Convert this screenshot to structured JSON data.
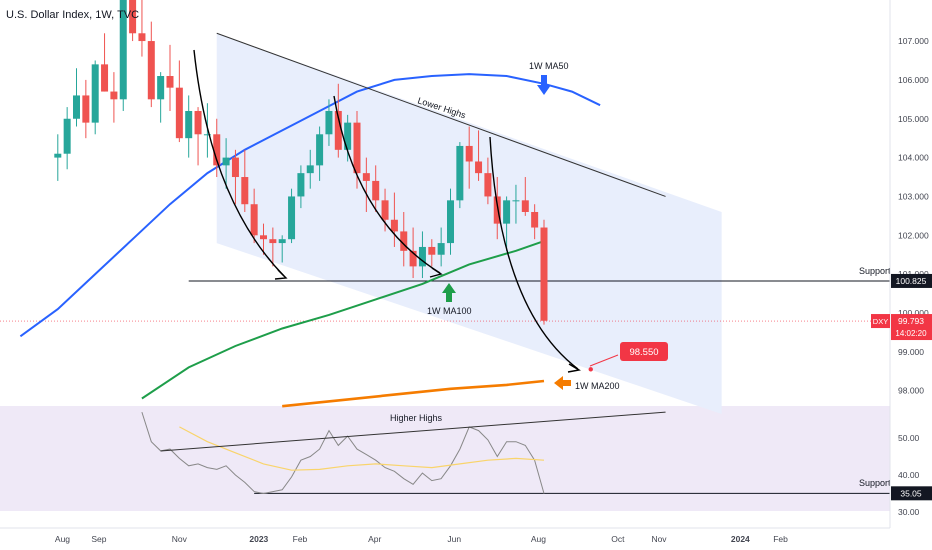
{
  "header": {
    "title": "U.S. Dollar Index, 1W, TVC"
  },
  "chart_data": {
    "type": "candlestick",
    "symbol": "DXY",
    "timeframe": "1W",
    "price_axis": {
      "ticks": [
        {
          "label": "107.000",
          "value": 107.0
        },
        {
          "label": "106.000",
          "value": 106.0
        },
        {
          "label": "105.000",
          "value": 105.0
        },
        {
          "label": "104.000",
          "value": 104.0
        },
        {
          "label": "103.000",
          "value": 103.0
        },
        {
          "label": "102.000",
          "value": 102.0
        },
        {
          "label": "101.000",
          "value": 101.0
        },
        {
          "label": "100.000",
          "value": 100.0
        },
        {
          "label": "99.000",
          "value": 99.0
        },
        {
          "label": "98.000",
          "value": 98.0
        }
      ],
      "range": [
        97.6,
        108.2
      ],
      "badges": [
        {
          "label": "100.825",
          "value": 100.825,
          "style": "dark"
        },
        {
          "label": "DXY",
          "value": 99.793,
          "style": "red"
        },
        {
          "label": "99.793",
          "value": 99.793,
          "style": "red"
        },
        {
          "label": "14:02:20",
          "value": 99.55,
          "style": "red"
        }
      ]
    },
    "rsi_axis": {
      "ticks": [
        {
          "label": "50.00",
          "value": 50
        },
        {
          "label": "40.00",
          "value": 40
        },
        {
          "label": "30.00",
          "value": 30
        }
      ],
      "range": [
        28,
        58
      ],
      "badge": {
        "label": "35.05",
        "value": 35.05
      }
    },
    "time_axis": {
      "labels": [
        {
          "label": "Aug",
          "week": -65.5
        },
        {
          "label": "Sep",
          "week": -61.6
        },
        {
          "label": "Nov",
          "week": -53.0
        },
        {
          "label": "2023",
          "week": -44.5
        },
        {
          "label": "Feb",
          "week": -40.1
        },
        {
          "label": "Apr",
          "week": -32.1
        },
        {
          "label": "Jun",
          "week": -23.6
        },
        {
          "label": "Aug",
          "week": -14.6
        },
        {
          "label": "Oct",
          "week": -6.1
        },
        {
          "label": "Nov",
          "week": -1.7
        },
        {
          "label": "2024",
          "week": 7.0
        },
        {
          "label": "Feb",
          "week": 11.3
        }
      ]
    },
    "candles": [
      [
        -66,
        104.0,
        104.6,
        103.4,
        104.1
      ],
      [
        -65,
        104.1,
        105.3,
        103.7,
        105.0
      ],
      [
        -64,
        105.0,
        106.3,
        104.8,
        105.6
      ],
      [
        -63,
        105.6,
        106.0,
        104.5,
        104.9
      ],
      [
        -62,
        104.9,
        106.5,
        104.6,
        106.4
      ],
      [
        -61,
        106.4,
        107.2,
        105.7,
        105.7
      ],
      [
        -60,
        105.7,
        106.2,
        104.9,
        105.5
      ],
      [
        -59,
        105.5,
        108.3,
        105.2,
        108.1
      ],
      [
        -58,
        108.1,
        108.8,
        107.0,
        107.2
      ],
      [
        -57,
        107.2,
        108.5,
        106.6,
        107.0
      ],
      [
        -56,
        107.0,
        107.5,
        105.3,
        105.5
      ],
      [
        -55,
        105.5,
        106.2,
        104.9,
        106.1
      ],
      [
        -54,
        106.1,
        106.9,
        105.2,
        105.8
      ],
      [
        -53,
        105.8,
        106.5,
        104.4,
        104.5
      ],
      [
        -52,
        104.5,
        105.6,
        104.0,
        105.2
      ],
      [
        -51,
        105.2,
        105.3,
        103.8,
        104.6
      ],
      [
        -50,
        104.6,
        105.4,
        104.0,
        104.6
      ],
      [
        -49,
        104.6,
        105.0,
        103.5,
        103.8
      ],
      [
        -48,
        103.8,
        104.5,
        103.2,
        104.0
      ],
      [
        -47,
        104.0,
        104.2,
        102.8,
        103.5
      ],
      [
        -46,
        103.5,
        104.2,
        102.6,
        102.8
      ],
      [
        -45,
        102.8,
        103.2,
        101.8,
        102.0
      ],
      [
        -44,
        102.0,
        102.3,
        101.5,
        101.9
      ],
      [
        -43,
        101.9,
        102.2,
        101.2,
        101.8
      ],
      [
        -42,
        101.8,
        102.0,
        101.3,
        101.9
      ],
      [
        -41,
        101.9,
        103.2,
        101.8,
        103.0
      ],
      [
        -40,
        103.0,
        103.8,
        102.7,
        103.6
      ],
      [
        -39,
        103.6,
        104.2,
        103.2,
        103.8
      ],
      [
        -38,
        103.8,
        104.8,
        103.4,
        104.6
      ],
      [
        -37,
        104.6,
        105.5,
        104.3,
        105.2
      ],
      [
        -36,
        105.2,
        105.9,
        104.0,
        104.2
      ],
      [
        -35,
        104.2,
        105.1,
        103.9,
        104.9
      ],
      [
        -34,
        104.9,
        105.2,
        103.2,
        103.6
      ],
      [
        -33,
        103.6,
        104.0,
        102.6,
        103.4
      ],
      [
        -32,
        103.4,
        103.8,
        102.6,
        102.9
      ],
      [
        -31,
        102.9,
        103.2,
        102.1,
        102.4
      ],
      [
        -30,
        102.4,
        103.1,
        101.7,
        102.1
      ],
      [
        -29,
        102.1,
        102.6,
        101.2,
        101.6
      ],
      [
        -28,
        101.6,
        102.2,
        100.9,
        101.2
      ],
      [
        -27,
        101.2,
        102.1,
        100.9,
        101.7
      ],
      [
        -26,
        101.7,
        101.9,
        101.2,
        101.5
      ],
      [
        -25,
        101.5,
        102.2,
        101.2,
        101.8
      ],
      [
        -24,
        101.8,
        103.2,
        101.5,
        102.9
      ],
      [
        -23,
        102.9,
        104.4,
        102.7,
        104.3
      ],
      [
        -22,
        104.3,
        104.8,
        103.2,
        103.9
      ],
      [
        -21,
        103.9,
        104.7,
        103.4,
        103.6
      ],
      [
        -20,
        103.6,
        104.0,
        102.8,
        103.0
      ],
      [
        -19,
        103.0,
        103.5,
        101.9,
        102.3
      ],
      [
        -18,
        102.3,
        103.0,
        101.6,
        102.9
      ],
      [
        -17,
        102.9,
        103.3,
        102.3,
        102.9
      ],
      [
        -16,
        102.9,
        103.5,
        102.5,
        102.6
      ],
      [
        -15,
        102.6,
        102.8,
        101.9,
        102.2
      ],
      [
        -14,
        102.2,
        102.4,
        99.7,
        99.8
      ]
    ],
    "moving_averages": [
      {
        "name": "1W MA50",
        "color": "#2962ff",
        "points": [
          [
            -70,
            99.4
          ],
          [
            -66,
            100.1
          ],
          [
            -62,
            101.0
          ],
          [
            -58,
            101.9
          ],
          [
            -54,
            102.8
          ],
          [
            -50,
            103.6
          ],
          [
            -46,
            104.2
          ],
          [
            -42,
            104.7
          ],
          [
            -38,
            105.2
          ],
          [
            -34,
            105.7
          ],
          [
            -30,
            106.0
          ],
          [
            -26,
            106.1
          ],
          [
            -22,
            106.15
          ],
          [
            -18,
            106.1
          ],
          [
            -14,
            105.9
          ],
          [
            -11,
            105.7
          ],
          [
            -8,
            105.35
          ]
        ]
      },
      {
        "name": "1W MA100",
        "color": "#1e9e4a",
        "points": [
          [
            -57,
            97.8
          ],
          [
            -52,
            98.6
          ],
          [
            -47,
            99.15
          ],
          [
            -42,
            99.6
          ],
          [
            -37,
            99.95
          ],
          [
            -32,
            100.35
          ],
          [
            -27,
            100.75
          ],
          [
            -22,
            101.25
          ],
          [
            -17,
            101.6
          ],
          [
            -14,
            101.85
          ]
        ]
      },
      {
        "name": "1W MA200",
        "color": "#f57c00",
        "points": [
          [
            -42,
            97.6
          ],
          [
            -36,
            97.75
          ],
          [
            -30,
            97.9
          ],
          [
            -24,
            98.05
          ],
          [
            -18,
            98.15
          ],
          [
            -14,
            98.25
          ]
        ]
      }
    ],
    "rsi": {
      "values": [
        [
          -57,
          57
        ],
        [
          -56,
          49
        ],
        [
          -55,
          46.5
        ],
        [
          -54,
          47
        ],
        [
          -53,
          44.5
        ],
        [
          -52,
          42.5
        ],
        [
          -51,
          43
        ],
        [
          -50,
          42
        ],
        [
          -49,
          41.5
        ],
        [
          -48,
          42.5
        ],
        [
          -47,
          40
        ],
        [
          -46,
          38
        ],
        [
          -45,
          35.5
        ],
        [
          -44,
          35
        ],
        [
          -43,
          35.5
        ],
        [
          -42,
          36
        ],
        [
          -41,
          39.5
        ],
        [
          -40,
          44
        ],
        [
          -39,
          45
        ],
        [
          -38,
          47
        ],
        [
          -37,
          52
        ],
        [
          -36,
          48
        ],
        [
          -35,
          50.5
        ],
        [
          -34,
          47
        ],
        [
          -33,
          45.5
        ],
        [
          -32,
          44
        ],
        [
          -31,
          42
        ],
        [
          -30,
          41
        ],
        [
          -29,
          39
        ],
        [
          -28,
          37.5
        ],
        [
          -27,
          40.5
        ],
        [
          -26,
          38.5
        ],
        [
          -25,
          39
        ],
        [
          -24,
          42.5
        ],
        [
          -23,
          47
        ],
        [
          -22,
          53
        ],
        [
          -21,
          52
        ],
        [
          -20,
          49.5
        ],
        [
          -19,
          45
        ],
        [
          -18,
          49
        ],
        [
          -17,
          49
        ],
        [
          -16,
          48
        ],
        [
          -15,
          44
        ],
        [
          -14,
          35
        ]
      ],
      "signal": [
        [
          -53,
          53
        ],
        [
          -50,
          49
        ],
        [
          -47,
          46
        ],
        [
          -44,
          43
        ],
        [
          -41,
          41.3
        ],
        [
          -38,
          41.5
        ],
        [
          -35,
          42.5
        ],
        [
          -32,
          43
        ],
        [
          -29,
          42.5
        ],
        [
          -26,
          42
        ],
        [
          -23,
          43
        ],
        [
          -20,
          44
        ],
        [
          -17,
          44.5
        ],
        [
          -14,
          44
        ]
      ]
    },
    "annotations": {
      "lower_highs": "Lower Highs",
      "higher_highs": "Higher Highs",
      "support_price": "Support",
      "support_rsi": "Support",
      "ma50": "1W MA50",
      "ma100": "1W MA100",
      "ma200": "1W MA200",
      "target": "98.550"
    },
    "levels": {
      "support_price": 100.825,
      "target": 98.55,
      "support_rsi": 35.05
    },
    "colors": {
      "up": "#26a69a",
      "down": "#ef5350",
      "channel_fill": "#e8eefc",
      "rsi_band": "#efe9f7",
      "rsi_line": "#888888",
      "rsi_signal": "#f9d46b",
      "target_badge": "#f23645",
      "ma50_arrow": "#2962ff",
      "ma100_arrow": "#1e9e4a",
      "ma200_arrow": "#f57c00",
      "dark_badge": "#131722"
    }
  }
}
